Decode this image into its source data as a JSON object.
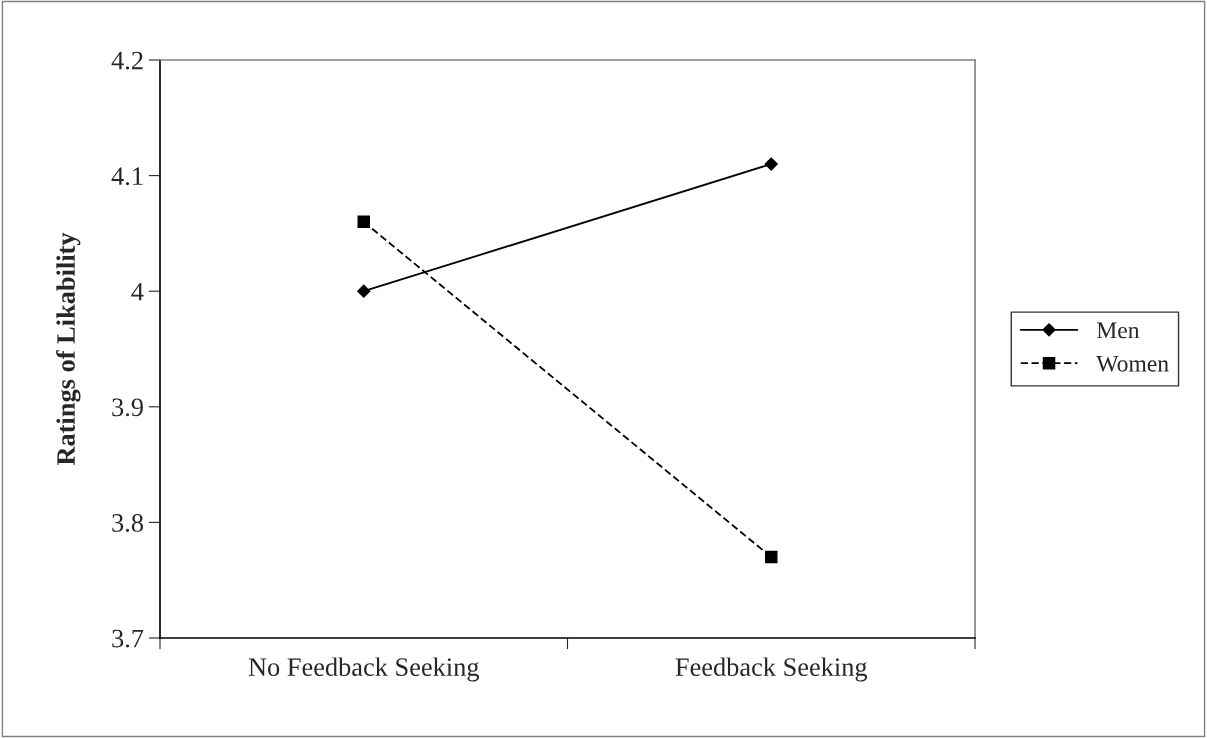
{
  "chart_data": {
    "type": "line",
    "ylabel": "Ratings of Likability",
    "categories": [
      "No Feedback Seeking",
      "Feedback Seeking"
    ],
    "series": [
      {
        "name": "Men",
        "color": "#000000",
        "values": [
          4.0,
          4.11
        ],
        "marker": "diamond",
        "line_style": "solid"
      },
      {
        "name": "Women",
        "color": "#000000",
        "values": [
          4.06,
          3.77
        ],
        "marker": "square",
        "line_style": "dashed"
      }
    ],
    "ylim": [
      3.7,
      4.2
    ],
    "yticks": [
      3.7,
      3.8,
      3.9,
      {
        "value": 4.0,
        "label": "4"
      },
      4.1,
      4.2
    ],
    "grid": false,
    "legend": "right"
  }
}
